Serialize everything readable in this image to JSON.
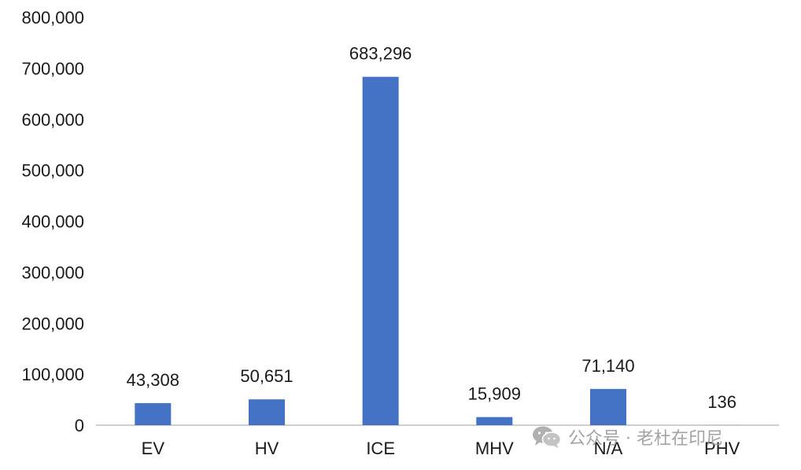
{
  "chart_data": {
    "type": "bar",
    "categories": [
      "EV",
      "HV",
      "ICE",
      "MHV",
      "N/A",
      "PHV"
    ],
    "values": [
      43308,
      50651,
      683296,
      15909,
      71140,
      136
    ],
    "data_labels": [
      "43,308",
      "50,651",
      "683,296",
      "15,909",
      "71,140",
      "136"
    ],
    "ylim": [
      0,
      800000
    ],
    "yticks": [
      0,
      100000,
      200000,
      300000,
      400000,
      500000,
      600000,
      700000,
      800000
    ],
    "ytick_labels": [
      "0",
      "100,000",
      "200,000",
      "300,000",
      "400,000",
      "500,000",
      "600,000",
      "700,000",
      "800,000"
    ],
    "grid": false,
    "bar_color": "#4472C4",
    "axis_color": "#BFBFBF"
  },
  "watermark": {
    "icon": "wechat-icon",
    "text": "公众号 · 老杜在印尼"
  }
}
